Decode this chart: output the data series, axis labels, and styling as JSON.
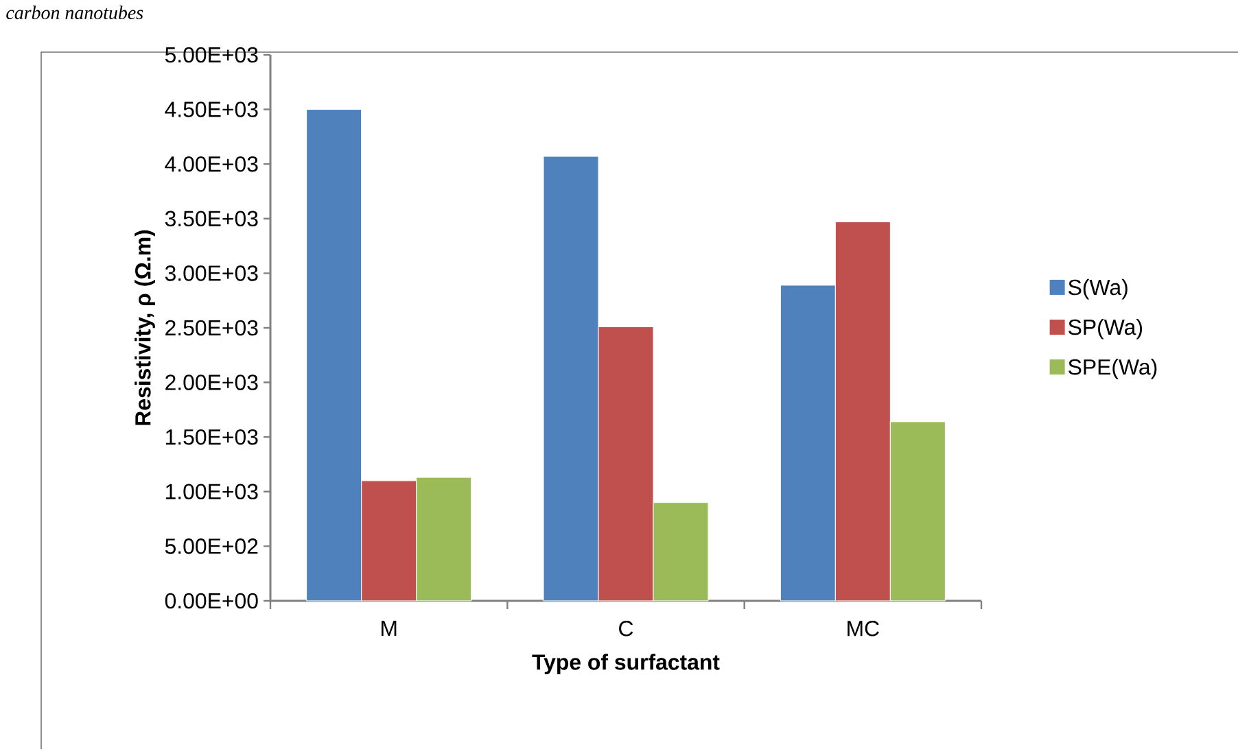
{
  "chart_data": {
    "type": "bar",
    "xlabel": "Type of surfactant",
    "ylabel": "Resistivity, ρ (Ω.m)",
    "annotations": [
      "carbon nanotubes"
    ],
    "categories": [
      "M",
      "C",
      "MC"
    ],
    "series": [
      {
        "name": "S(Wa)",
        "color": "#4f81bd",
        "values": [
          4500,
          4070,
          2890
        ]
      },
      {
        "name": "SP(Wa)",
        "color": "#c0504d",
        "values": [
          1100,
          2510,
          3470
        ]
      },
      {
        "name": "SPE(Wa)",
        "color": "#9bbb59",
        "values": [
          1130,
          900,
          1640
        ]
      }
    ],
    "ylim": [
      0,
      5000
    ],
    "yticks": [
      {
        "value": 0,
        "label": "0.00E+00"
      },
      {
        "value": 500,
        "label": "5.00E+02"
      },
      {
        "value": 1000,
        "label": "1.00E+03"
      },
      {
        "value": 1500,
        "label": "1.50E+03"
      },
      {
        "value": 2000,
        "label": "2.00E+03"
      },
      {
        "value": 2500,
        "label": "2.50E+03"
      },
      {
        "value": 3000,
        "label": "3.00E+03"
      },
      {
        "value": 3500,
        "label": "3.50E+03"
      },
      {
        "value": 4000,
        "label": "4.00E+03"
      },
      {
        "value": 4500,
        "label": "4.50E+03"
      },
      {
        "value": 5000,
        "label": "5.00E+03"
      }
    ],
    "grid": false,
    "legend": "right"
  }
}
